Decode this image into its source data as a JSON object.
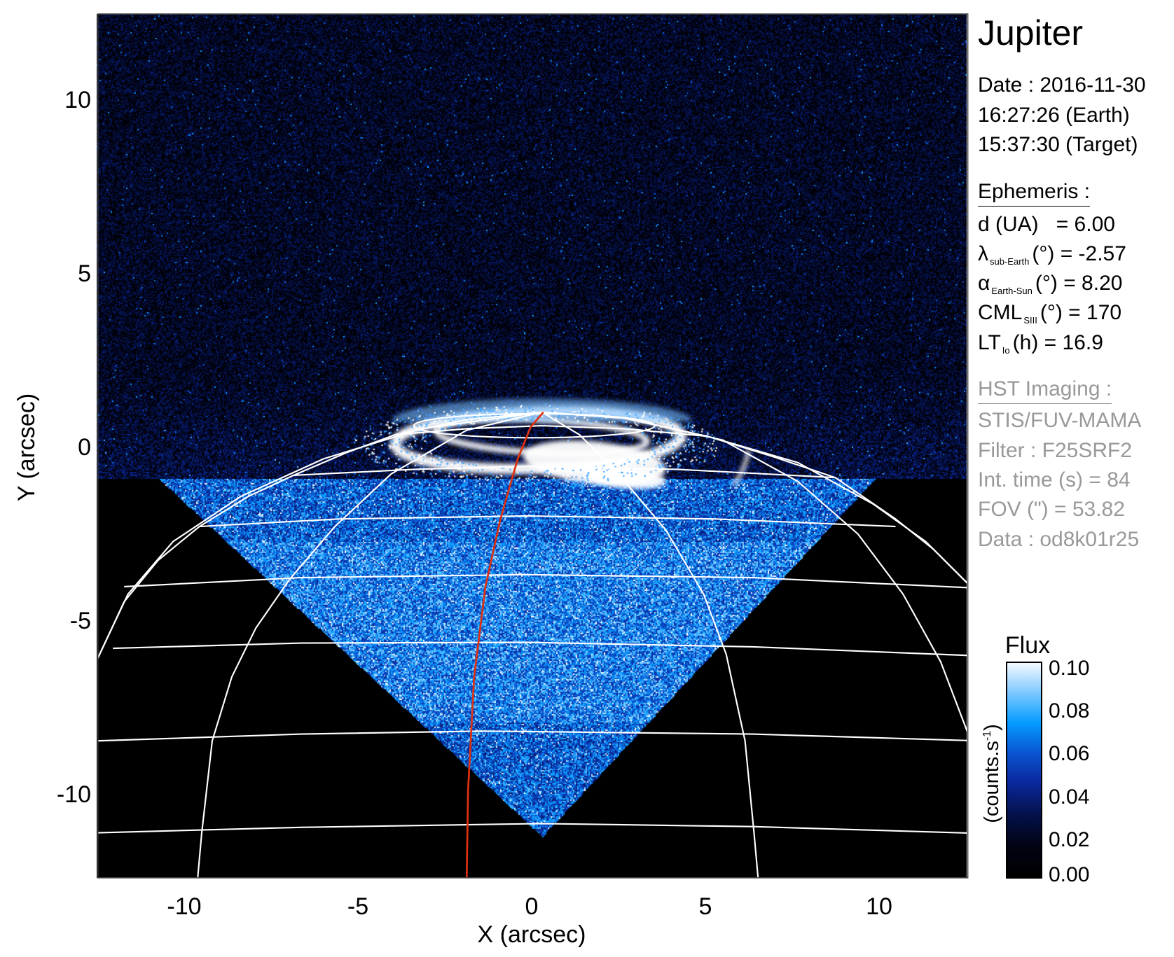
{
  "chart_data": {
    "type": "heatmap",
    "title": "Jupiter",
    "xlabel": "X (arcsec)",
    "ylabel": "Y (arcsec)",
    "xlim": [
      -12.5,
      12.5
    ],
    "ylim": [
      -12.5,
      12.5
    ],
    "xticks": [
      -10,
      -5,
      0,
      5,
      10
    ],
    "yticks": [
      10,
      5,
      0,
      -5,
      -10
    ],
    "grid": "planetographic latitude/longitude overlay (white), sub-observer meridian (red)",
    "colorbar": {
      "title": "Flux",
      "label": "(counts.s",
      "label_sup": "-1",
      "label_end": ")",
      "range": [
        0.0,
        0.1
      ],
      "ticks": [
        "0.10",
        "0.08",
        "0.06",
        "0.04",
        "0.02",
        "0.00"
      ],
      "colors": [
        "#000000",
        "#04124e",
        "#0a55d0",
        "#049cff",
        "#f4faff"
      ]
    }
  },
  "info": {
    "title": "Jupiter",
    "date": "Date : 2016-11-30",
    "earth_time": "16:27:26 (Earth)",
    "target_time": "15:37:30 (Target)",
    "ephemeris_header": "Ephemeris :",
    "ephemeris": [
      {
        "sym": "d (UA)",
        "sub": "",
        "rest": "   = 6.00"
      },
      {
        "sym": "λ",
        "sub": "sub-Earth",
        "rest": "(°) = -2.57"
      },
      {
        "sym": "α",
        "sub": "Earth-Sun",
        "rest": "(°) = 8.20"
      },
      {
        "sym": "CML",
        "sub": "SIII",
        "rest": "(°) = 170"
      },
      {
        "sym": "LT",
        "sub": "Io",
        "rest": "(h) = 16.9"
      }
    ],
    "hst_header": "HST Imaging :",
    "hst": [
      "STIS/FUV-MAMA",
      "Filter : F25SRF2",
      "Int. time (s) = 84",
      "FOV (\") = 53.82",
      "Data : od8k01r25"
    ]
  },
  "colors": {
    "grid": "#ffffff",
    "meridian": "#e03010",
    "text_gray": "#999999"
  }
}
